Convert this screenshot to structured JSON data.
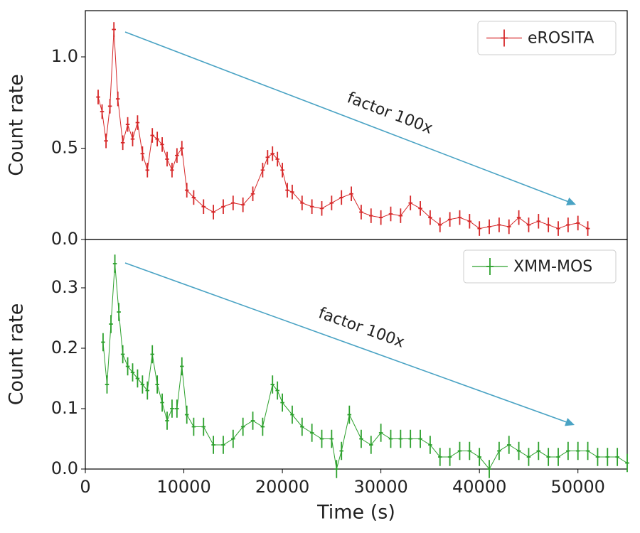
{
  "chart_data": [
    {
      "type": "line",
      "ylabel": "Count rate",
      "xlim": [
        0,
        55000
      ],
      "ylim": [
        0,
        1.253
      ],
      "yticks": [
        {
          "value": 0,
          "label": "0.0"
        },
        {
          "value": 0.5,
          "label": "0.5"
        },
        {
          "value": 1.0,
          "label": "1.0"
        }
      ],
      "legend": "upper right",
      "annotation": "factor 100x",
      "x": [
        1300,
        1700,
        2100,
        2500,
        2900,
        3300,
        3800,
        4300,
        4800,
        5300,
        5800,
        6300,
        6800,
        7300,
        7800,
        8300,
        8800,
        9300,
        9800,
        10300,
        11000,
        12000,
        13000,
        14000,
        15000,
        16000,
        17000,
        18000,
        18500,
        19000,
        19500,
        20000,
        20500,
        21000,
        22000,
        23000,
        24000,
        25000,
        26000,
        27000,
        28000,
        29000,
        30000,
        31000,
        32000,
        33000,
        34000,
        35000,
        36000,
        37000,
        38000,
        39000,
        40000,
        41000,
        42000,
        43000,
        44000,
        45000,
        46000,
        47000,
        48000,
        49000,
        50000,
        51000
      ],
      "series": [
        {
          "name": "eROSITA",
          "color": "#d62728",
          "yerr": 0.04,
          "xerr": 200,
          "values": [
            0.78,
            0.7,
            0.54,
            0.73,
            1.15,
            0.77,
            0.53,
            0.63,
            0.55,
            0.64,
            0.47,
            0.38,
            0.57,
            0.55,
            0.52,
            0.44,
            0.38,
            0.46,
            0.5,
            0.27,
            0.23,
            0.18,
            0.15,
            0.18,
            0.2,
            0.19,
            0.25,
            0.38,
            0.45,
            0.47,
            0.44,
            0.38,
            0.27,
            0.26,
            0.2,
            0.18,
            0.17,
            0.2,
            0.23,
            0.25,
            0.15,
            0.13,
            0.12,
            0.14,
            0.13,
            0.2,
            0.17,
            0.12,
            0.08,
            0.11,
            0.12,
            0.1,
            0.06,
            0.07,
            0.08,
            0.07,
            0.12,
            0.08,
            0.1,
            0.08,
            0.06,
            0.08,
            0.09,
            0.06
          ]
        }
      ]
    },
    {
      "type": "line",
      "xlabel": "Time (s)",
      "ylabel": "Count rate",
      "xlim": [
        0,
        55000
      ],
      "ylim": [
        0,
        0.38
      ],
      "xticks": [
        0,
        10000,
        20000,
        30000,
        40000,
        50000
      ],
      "yticks": [
        {
          "value": 0,
          "label": "0.0"
        },
        {
          "value": 0.1,
          "label": "0.1"
        },
        {
          "value": 0.2,
          "label": "0.2"
        },
        {
          "value": 0.3,
          "label": "0.3"
        }
      ],
      "legend": "upper right",
      "annotation": "factor 100x",
      "x": [
        1800,
        2200,
        2600,
        3000,
        3400,
        3800,
        4300,
        4800,
        5300,
        5800,
        6300,
        6800,
        7300,
        7800,
        8300,
        8800,
        9300,
        9800,
        10300,
        11000,
        12000,
        13000,
        14000,
        15000,
        16000,
        17000,
        18000,
        19000,
        19500,
        20000,
        21000,
        22000,
        23000,
        24000,
        25000,
        25500,
        26000,
        26800,
        28000,
        29000,
        30000,
        31000,
        32000,
        33000,
        34000,
        35000,
        36000,
        37000,
        38000,
        39000,
        40000,
        41000,
        42000,
        43000,
        44000,
        45000,
        46000,
        47000,
        48000,
        49000,
        50000,
        51000,
        52000,
        53000,
        54000,
        55000
      ],
      "series": [
        {
          "name": "XMM-MOS",
          "color": "#2ca02c",
          "yerr": 0.015,
          "xerr": 200,
          "values": [
            0.21,
            0.14,
            0.24,
            0.34,
            0.26,
            0.19,
            0.17,
            0.16,
            0.15,
            0.14,
            0.13,
            0.19,
            0.14,
            0.11,
            0.08,
            0.1,
            0.1,
            0.17,
            0.09,
            0.07,
            0.07,
            0.04,
            0.04,
            0.05,
            0.07,
            0.08,
            0.07,
            0.14,
            0.13,
            0.11,
            0.09,
            0.07,
            0.06,
            0.05,
            0.05,
            0.0,
            0.03,
            0.09,
            0.05,
            0.04,
            0.06,
            0.05,
            0.05,
            0.05,
            0.05,
            0.04,
            0.02,
            0.02,
            0.03,
            0.03,
            0.02,
            0.0,
            0.03,
            0.04,
            0.03,
            0.02,
            0.03,
            0.02,
            0.02,
            0.03,
            0.03,
            0.03,
            0.02,
            0.02,
            0.02,
            0.01
          ]
        }
      ]
    }
  ]
}
